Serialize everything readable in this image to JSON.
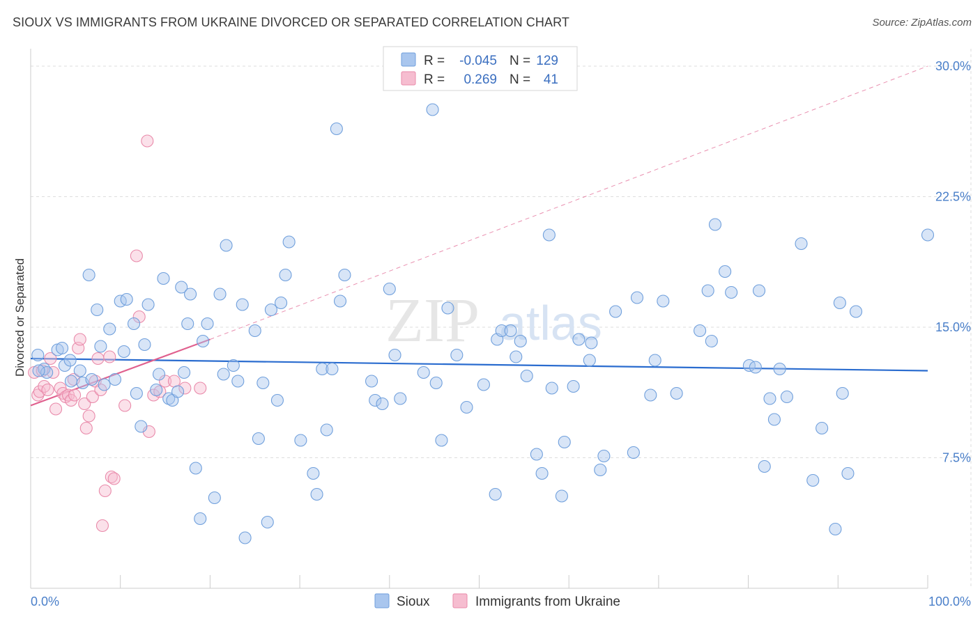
{
  "title": "SIOUX VS IMMIGRANTS FROM UKRAINE DIVORCED OR SEPARATED CORRELATION CHART",
  "source": "Source: ZipAtlas.com",
  "watermark": {
    "zip": "ZIP",
    "atlas": "atlas"
  },
  "colors": {
    "blue_fill": "#a9c6ee",
    "blue_stroke": "#6f9fdc",
    "blue_line": "#2a6ccf",
    "pink_fill": "#f6bdd0",
    "pink_stroke": "#e98aaa",
    "pink_line": "#e0608e",
    "tick_text": "#4a7fc9",
    "grid": "#dddddd"
  },
  "legend": {
    "rows": [
      {
        "r_label": "R =",
        "r_value": "-0.045",
        "n_label": "N =",
        "n_value": "129",
        "series": "blue"
      },
      {
        "r_label": "R =",
        "r_value": "0.269",
        "n_label": "N =",
        "n_value": "41",
        "series": "pink"
      }
    ]
  },
  "bottom_legend": [
    {
      "label": "Sioux",
      "series": "blue"
    },
    {
      "label": "Immigrants from Ukraine",
      "series": "pink"
    }
  ],
  "chart_data": {
    "type": "scatter",
    "title": "SIOUX VS IMMIGRANTS FROM UKRAINE DIVORCED OR SEPARATED CORRELATION CHART",
    "xlabel": "",
    "ylabel": "Divorced or Separated",
    "xlim": [
      0,
      100
    ],
    "ylim": [
      0,
      31
    ],
    "x_tick_labels": [
      {
        "value": 0,
        "label": "0.0%"
      },
      {
        "value": 100,
        "label": "100.0%"
      }
    ],
    "y_tick_labels": [
      {
        "value": 7.5,
        "label": "7.5%"
      },
      {
        "value": 15.0,
        "label": "15.0%"
      },
      {
        "value": 22.5,
        "label": "22.5%"
      },
      {
        "value": 30.0,
        "label": "30.0%"
      }
    ],
    "x_minor_ticks": [
      10,
      20,
      30,
      40,
      50,
      60,
      70,
      80,
      90
    ],
    "grid": true,
    "series": [
      {
        "name": "Sioux",
        "color": "blue",
        "trend": {
          "x": [
            0,
            100
          ],
          "y": [
            13.2,
            12.5
          ],
          "dashed_extension": false
        },
        "points": [
          [
            0.8,
            13.4
          ],
          [
            1.5,
            12.6
          ],
          [
            1.8,
            12.4
          ],
          [
            3.0,
            13.7
          ],
          [
            3.5,
            13.8
          ],
          [
            3.8,
            12.8
          ],
          [
            4.4,
            13.1
          ],
          [
            4.5,
            11.9
          ],
          [
            5.5,
            12.5
          ],
          [
            5.8,
            11.8
          ],
          [
            6.5,
            18.0
          ],
          [
            6.8,
            12.0
          ],
          [
            7.4,
            16.0
          ],
          [
            7.8,
            13.9
          ],
          [
            8.2,
            11.7
          ],
          [
            8.8,
            14.9
          ],
          [
            9.4,
            12.0
          ],
          [
            10.0,
            16.5
          ],
          [
            10.4,
            13.6
          ],
          [
            10.7,
            16.6
          ],
          [
            11.5,
            15.2
          ],
          [
            11.8,
            11.2
          ],
          [
            12.3,
            9.3
          ],
          [
            12.7,
            14.0
          ],
          [
            13.1,
            16.3
          ],
          [
            14.0,
            11.4
          ],
          [
            14.3,
            12.3
          ],
          [
            14.8,
            17.8
          ],
          [
            15.4,
            10.9
          ],
          [
            15.8,
            10.8
          ],
          [
            16.4,
            11.3
          ],
          [
            16.8,
            17.3
          ],
          [
            17.5,
            15.2
          ],
          [
            17.8,
            16.9
          ],
          [
            18.4,
            6.9
          ],
          [
            18.9,
            4.0
          ],
          [
            19.2,
            14.2
          ],
          [
            19.7,
            15.2
          ],
          [
            20.5,
            5.2
          ],
          [
            21.1,
            16.9
          ],
          [
            21.5,
            12.3
          ],
          [
            21.8,
            19.7
          ],
          [
            22.6,
            12.8
          ],
          [
            23.1,
            11.9
          ],
          [
            23.6,
            16.3
          ],
          [
            23.9,
            2.9
          ],
          [
            25.0,
            14.8
          ],
          [
            25.4,
            8.6
          ],
          [
            25.9,
            11.8
          ],
          [
            26.4,
            3.8
          ],
          [
            26.8,
            16.0
          ],
          [
            27.5,
            10.8
          ],
          [
            27.9,
            16.4
          ],
          [
            28.4,
            18.0
          ],
          [
            28.8,
            19.9
          ],
          [
            30.1,
            8.5
          ],
          [
            31.5,
            6.6
          ],
          [
            31.9,
            5.4
          ],
          [
            32.5,
            12.6
          ],
          [
            33.0,
            9.1
          ],
          [
            34.1,
            26.4
          ],
          [
            34.5,
            16.5
          ],
          [
            35.0,
            18.0
          ],
          [
            38.0,
            11.9
          ],
          [
            38.4,
            10.8
          ],
          [
            39.2,
            10.6
          ],
          [
            40.0,
            17.2
          ],
          [
            40.6,
            13.4
          ],
          [
            41.2,
            10.9
          ],
          [
            43.8,
            12.4
          ],
          [
            44.8,
            27.5
          ],
          [
            45.2,
            11.8
          ],
          [
            45.8,
            8.5
          ],
          [
            46.5,
            16.1
          ],
          [
            47.5,
            13.4
          ],
          [
            48.6,
            10.4
          ],
          [
            50.5,
            11.7
          ],
          [
            51.8,
            5.4
          ],
          [
            52.0,
            14.3
          ],
          [
            52.5,
            14.8
          ],
          [
            53.5,
            14.8
          ],
          [
            54.1,
            13.3
          ],
          [
            54.6,
            14.2
          ],
          [
            55.3,
            12.2
          ],
          [
            56.4,
            7.7
          ],
          [
            57.0,
            6.6
          ],
          [
            57.8,
            20.3
          ],
          [
            58.1,
            11.5
          ],
          [
            59.2,
            5.3
          ],
          [
            59.5,
            8.4
          ],
          [
            60.5,
            11.6
          ],
          [
            61.1,
            14.3
          ],
          [
            62.3,
            13.1
          ],
          [
            62.5,
            14.1
          ],
          [
            63.5,
            6.8
          ],
          [
            63.9,
            7.6
          ],
          [
            65.2,
            15.9
          ],
          [
            67.2,
            7.8
          ],
          [
            67.6,
            16.7
          ],
          [
            69.1,
            11.1
          ],
          [
            69.6,
            13.1
          ],
          [
            70.5,
            16.5
          ],
          [
            72.0,
            11.2
          ],
          [
            74.6,
            14.8
          ],
          [
            75.5,
            17.1
          ],
          [
            75.9,
            14.2
          ],
          [
            76.3,
            20.9
          ],
          [
            77.4,
            18.2
          ],
          [
            78.1,
            17.0
          ],
          [
            80.1,
            12.8
          ],
          [
            80.8,
            12.7
          ],
          [
            81.2,
            17.1
          ],
          [
            81.8,
            7.0
          ],
          [
            82.4,
            10.9
          ],
          [
            82.9,
            9.7
          ],
          [
            83.5,
            12.6
          ],
          [
            84.3,
            11.0
          ],
          [
            85.9,
            19.8
          ],
          [
            87.2,
            6.2
          ],
          [
            88.2,
            9.2
          ],
          [
            89.7,
            3.4
          ],
          [
            90.2,
            16.4
          ],
          [
            90.5,
            11.2
          ],
          [
            91.1,
            6.6
          ],
          [
            92.0,
            15.9
          ],
          [
            100.0,
            20.3
          ],
          [
            0.9,
            12.5
          ],
          [
            17.1,
            12.4
          ],
          [
            33.6,
            12.6
          ]
        ]
      },
      {
        "name": "Immigrants from Ukraine",
        "color": "pink",
        "trend": {
          "x": [
            0,
            20
          ],
          "y": [
            10.5,
            14.3
          ],
          "dashed_x": [
            20,
            100
          ],
          "dashed_y": [
            14.3,
            30.0
          ]
        },
        "points": [
          [
            0.4,
            12.4
          ],
          [
            0.8,
            11.1
          ],
          [
            1.0,
            11.3
          ],
          [
            1.3,
            12.5
          ],
          [
            1.5,
            11.6
          ],
          [
            1.9,
            11.4
          ],
          [
            2.2,
            13.2
          ],
          [
            2.5,
            12.4
          ],
          [
            2.8,
            10.3
          ],
          [
            3.3,
            11.5
          ],
          [
            3.6,
            11.2
          ],
          [
            3.9,
            11.0
          ],
          [
            4.2,
            11.1
          ],
          [
            4.5,
            10.8
          ],
          [
            4.8,
            12.0
          ],
          [
            5.3,
            13.8
          ],
          [
            5.5,
            14.3
          ],
          [
            6.0,
            10.6
          ],
          [
            6.2,
            9.2
          ],
          [
            6.5,
            9.9
          ],
          [
            6.9,
            11.0
          ],
          [
            7.2,
            11.9
          ],
          [
            7.5,
            13.2
          ],
          [
            7.8,
            11.4
          ],
          [
            8.0,
            3.6
          ],
          [
            8.3,
            5.6
          ],
          [
            8.8,
            13.3
          ],
          [
            9.0,
            6.4
          ],
          [
            9.3,
            6.3
          ],
          [
            10.5,
            10.5
          ],
          [
            11.8,
            19.1
          ],
          [
            12.1,
            15.6
          ],
          [
            13.0,
            25.7
          ],
          [
            13.2,
            9.0
          ],
          [
            13.7,
            11.1
          ],
          [
            14.4,
            11.3
          ],
          [
            15.0,
            11.9
          ],
          [
            16.0,
            11.9
          ],
          [
            17.2,
            11.5
          ],
          [
            18.9,
            11.5
          ],
          [
            4.9,
            11.1
          ]
        ]
      }
    ]
  }
}
